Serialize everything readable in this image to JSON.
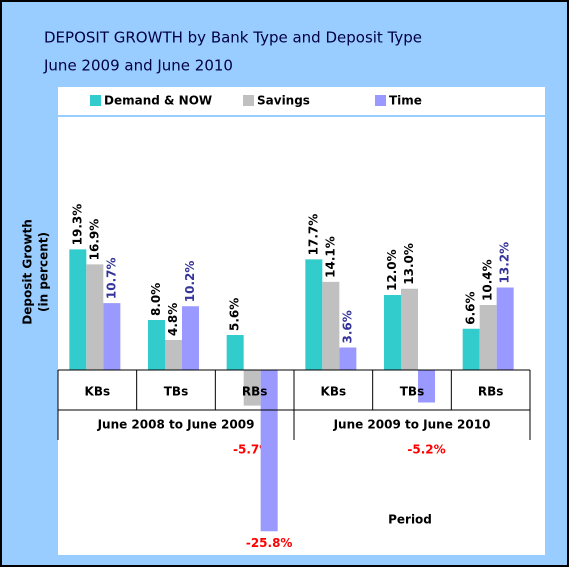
{
  "chart_data": {
    "type": "bar",
    "title": "DEPOSIT GROWTH by Bank Type and Deposit Type",
    "subtitle": "June 2009 and June 2010",
    "y_label": [
      "Deposit Growth",
      "(in percent)"
    ],
    "x_label": "Period",
    "categories": [
      "KBs",
      "TBs",
      "RBs",
      "KBs",
      "TBs",
      "RBs"
    ],
    "category_groups": [
      "June 2008 to June 2009",
      "June 2009 to June 2010"
    ],
    "ylim": [
      -30,
      38
    ],
    "series": [
      {
        "name": "Demand & NOW",
        "color": "#33cccc",
        "values": [
          19.3,
          8.0,
          5.6,
          17.7,
          12.0,
          6.6
        ],
        "value_labels": [
          "19.3%",
          "8.0%",
          "5.6%",
          "17.7%",
          "12.0%",
          "6.6%"
        ]
      },
      {
        "name": "Savings",
        "color": "#c0c0c0",
        "values": [
          16.9,
          4.8,
          -5.7,
          14.1,
          13.0,
          10.4
        ],
        "value_labels": [
          "16.9%",
          "4.8%",
          "-5.7%",
          "14.1%",
          "13.0%",
          "10.4%"
        ]
      },
      {
        "name": "Time",
        "color": "#9999ff",
        "values": [
          10.7,
          10.2,
          -25.8,
          3.6,
          -5.2,
          13.2
        ],
        "value_labels": [
          "10.7%",
          "10.2%",
          "-25.8%",
          "3.6%",
          "-5.2%",
          "13.2%"
        ]
      }
    ]
  }
}
